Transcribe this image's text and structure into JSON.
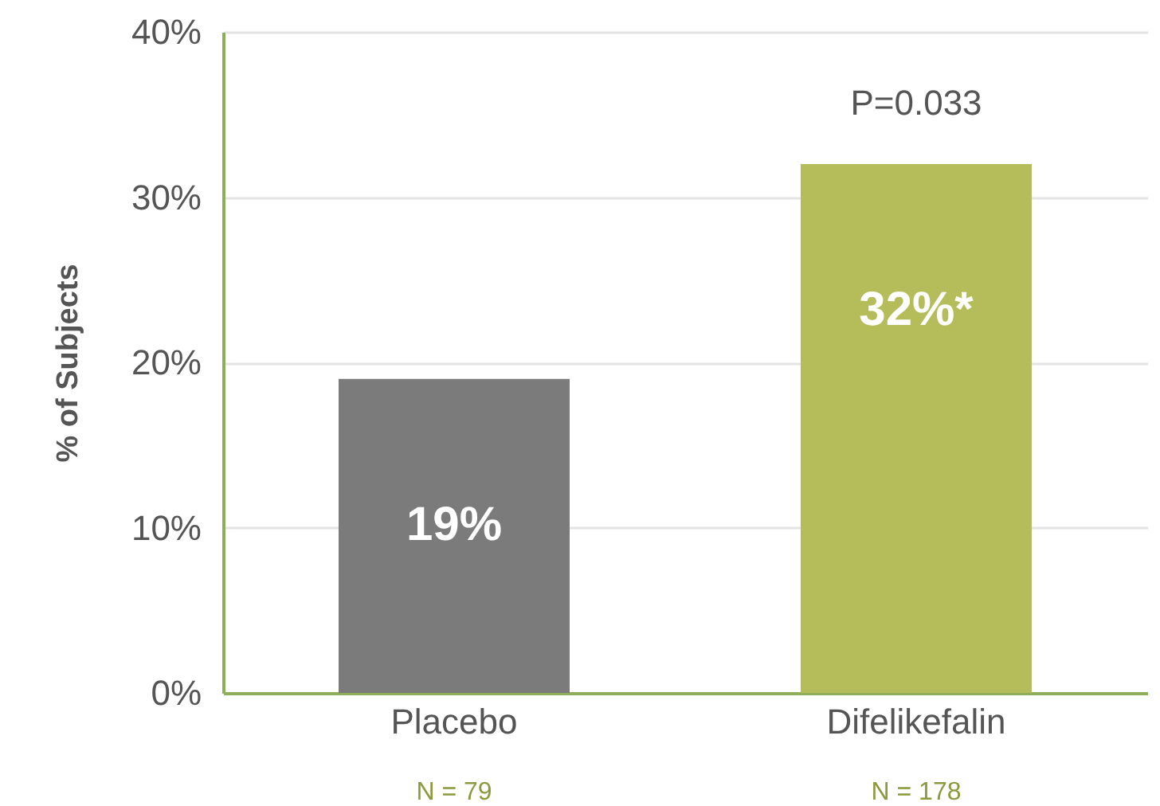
{
  "chart_data": {
    "type": "bar",
    "categories": [
      "Placebo",
      "Difelikefalin"
    ],
    "values": [
      19,
      32
    ],
    "colors": [
      "#7b7b7b",
      "#b5bd5a"
    ],
    "value_labels": [
      "19%",
      "32%*"
    ],
    "ylabel": "% of Subjects",
    "ylim": [
      0,
      40
    ],
    "yticks": [
      {
        "value": 0,
        "label": "0%"
      },
      {
        "value": 10,
        "label": "10%"
      },
      {
        "value": 20,
        "label": "20%"
      },
      {
        "value": 30,
        "label": "30%"
      },
      {
        "value": 40,
        "label": "40%"
      }
    ],
    "grid": "y",
    "annotations": [
      "N = 79",
      "N = 178",
      "P=0.033"
    ]
  }
}
